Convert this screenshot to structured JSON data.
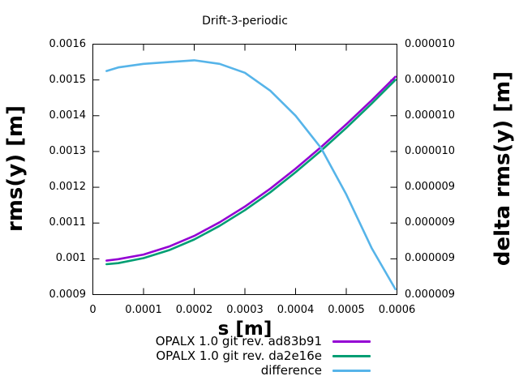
{
  "title": "Drift-3-periodic",
  "axes": {
    "x": {
      "label": "s [m]",
      "min": 0,
      "max": 0.0006,
      "tick_labels": [
        "0",
        "0.0001",
        "0.0002",
        "0.0003",
        "0.0004",
        "0.0005",
        "0.0006"
      ]
    },
    "y_left": {
      "label": "rms(y) [m]",
      "min": 0.0009,
      "max": 0.0016,
      "tick_labels": [
        "0.0009",
        "0.001",
        "0.0011",
        "0.0012",
        "0.0013",
        "0.0014",
        "0.0015",
        "0.0016"
      ]
    },
    "y_right": {
      "label": "delta rms(y) [m]",
      "min": 8.8e-06,
      "max": 1.02e-05,
      "tick_labels": [
        "0.000009",
        "0.000009",
        "0.000009",
        "0.000009",
        "0.000010",
        "0.000010",
        "0.000010",
        "0.000010"
      ]
    }
  },
  "chart_data": {
    "type": "line",
    "title": "Drift-3-periodic",
    "xlabel": "s [m]",
    "ylabel_left": "rms(y) [m]",
    "ylabel_right": "delta rms(y) [m]",
    "x_range": [
      0,
      0.0006
    ],
    "y_left_range": [
      0.0009,
      0.0016
    ],
    "y_right_range": [
      8.8e-06,
      1.02e-05
    ],
    "grid": false,
    "legend_position": "below",
    "x": [
      2.7e-05,
      5e-05,
      0.0001,
      0.00015,
      0.0002,
      0.00025,
      0.0003,
      0.00035,
      0.0004,
      0.00045,
      0.0005,
      0.00055,
      0.000597
    ],
    "series": [
      {
        "name": "OPALX 1.0 git rev. ad83b91",
        "axis": "left",
        "color": "#9400d3",
        "values": [
          0.000995,
          0.000999,
          0.001012,
          0.001034,
          0.001064,
          0.001102,
          0.001146,
          0.001196,
          0.001252,
          0.001312,
          0.001376,
          0.001443,
          0.001509
        ]
      },
      {
        "name": "OPALX 1.0 git rev. da2e16e",
        "axis": "left",
        "color": "#009e73",
        "values": [
          0.000985,
          0.000988,
          0.001002,
          0.001024,
          0.001054,
          0.001092,
          0.001136,
          0.001186,
          0.001242,
          0.001302,
          0.001366,
          0.001434,
          0.0015
        ]
      },
      {
        "name": "difference",
        "axis": "right",
        "color": "#56b4e9",
        "values": [
          1.005e-05,
          1.007e-05,
          1.009e-05,
          1.01e-05,
          1.011e-05,
          1.009e-05,
          1.004e-05,
          9.94e-06,
          9.8e-06,
          9.62e-06,
          9.36e-06,
          9.06e-06,
          8.83e-06
        ]
      }
    ]
  }
}
